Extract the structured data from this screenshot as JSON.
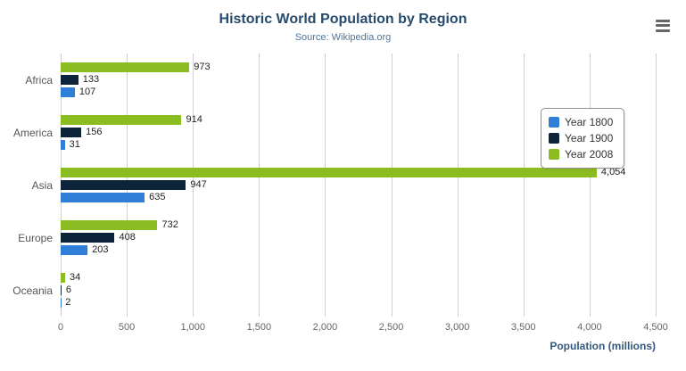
{
  "header": {
    "title": "Historic World Population by Region",
    "subtitle": "Source: Wikipedia.org"
  },
  "export_menu": {
    "icon": "hamburger-icon"
  },
  "chart_data": {
    "type": "bar",
    "orientation": "horizontal",
    "categories": [
      "Africa",
      "America",
      "Asia",
      "Europe",
      "Oceania"
    ],
    "series": [
      {
        "name": "Year 1800",
        "color": "#2f7ed8",
        "values": [
          107,
          31,
          635,
          203,
          2
        ]
      },
      {
        "name": "Year 1900",
        "color": "#0d233a",
        "values": [
          133,
          156,
          947,
          408,
          6
        ]
      },
      {
        "name": "Year 2008",
        "color": "#8bbc21",
        "values": [
          973,
          914,
          4054,
          732,
          34
        ]
      }
    ],
    "bar_order_top_to_bottom": [
      "Year 2008",
      "Year 1900",
      "Year 1800"
    ],
    "xlabel": "Population (millions)",
    "xlim": [
      0,
      4500
    ],
    "ticks": [
      "0",
      "500",
      "1,000",
      "1,500",
      "2,000",
      "2,500",
      "3,000",
      "3,500",
      "4,000",
      "4,500"
    ],
    "grid": true,
    "legend_position": "right"
  },
  "colors": {
    "title": "#274b6d",
    "subtitle": "#4d759e",
    "axis_tick_label": "#666666",
    "category_label": "#555555",
    "data_label": "#222222",
    "gridline": "#d0d0d0",
    "x_axis_title": "#35597a",
    "legend_border": "#909090"
  }
}
